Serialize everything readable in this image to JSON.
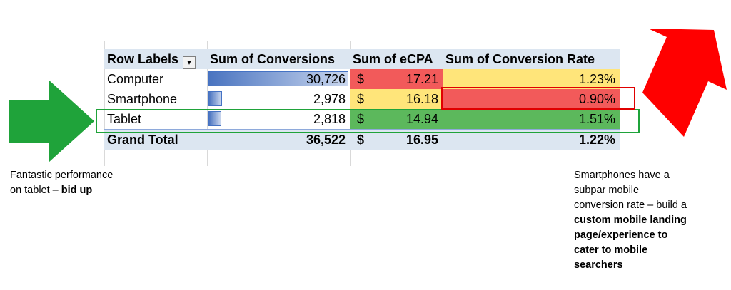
{
  "pivot": {
    "headers": {
      "row_labels": "Row Labels",
      "conversions": "Sum of Conversions",
      "ecpa": "Sum of eCPA",
      "conversion_rate": "Sum of Conversion Rate"
    },
    "currency_symbol": "$",
    "rows": [
      {
        "label": "Computer",
        "conversions": "30,726",
        "ecpa": "17.21",
        "rate": "1.23%",
        "bar_fraction": 1.0,
        "ecpa_color": "#f25a5a",
        "rate_color": "#ffe57a"
      },
      {
        "label": "Smartphone",
        "conversions": "2,978",
        "ecpa": "16.18",
        "rate": "0.90%",
        "bar_fraction": 0.097,
        "ecpa_color": "#ffe57a",
        "rate_color": "#f25a5a"
      },
      {
        "label": "Tablet",
        "conversions": "2,818",
        "ecpa": "14.94",
        "rate": "1.51%",
        "bar_fraction": 0.092,
        "ecpa_color": "#5cb85c",
        "rate_color": "#5cb85c"
      }
    ],
    "total": {
      "label": "Grand Total",
      "conversions": "36,522",
      "ecpa": "16.95",
      "rate": "1.22%"
    }
  },
  "annotations": {
    "tablet": {
      "line1": "Fantastic performance",
      "line2_normal": "on tablet – ",
      "line2_bold": "bid up"
    },
    "smartphone": {
      "line1": "Smartphones have a",
      "line2": "subpar mobile",
      "line3": "conversion rate – build a",
      "bold1": "custom mobile landing",
      "bold2": "page/experience to",
      "bold3": "cater to mobile",
      "bold4": "searchers"
    }
  },
  "colors": {
    "green_arrow": "#1fa33a",
    "red_arrow": "#ff0000",
    "header_fill": "#dce6f1",
    "data_bar": "#4a74c0"
  },
  "icons": {
    "filter": "filter-icon"
  }
}
